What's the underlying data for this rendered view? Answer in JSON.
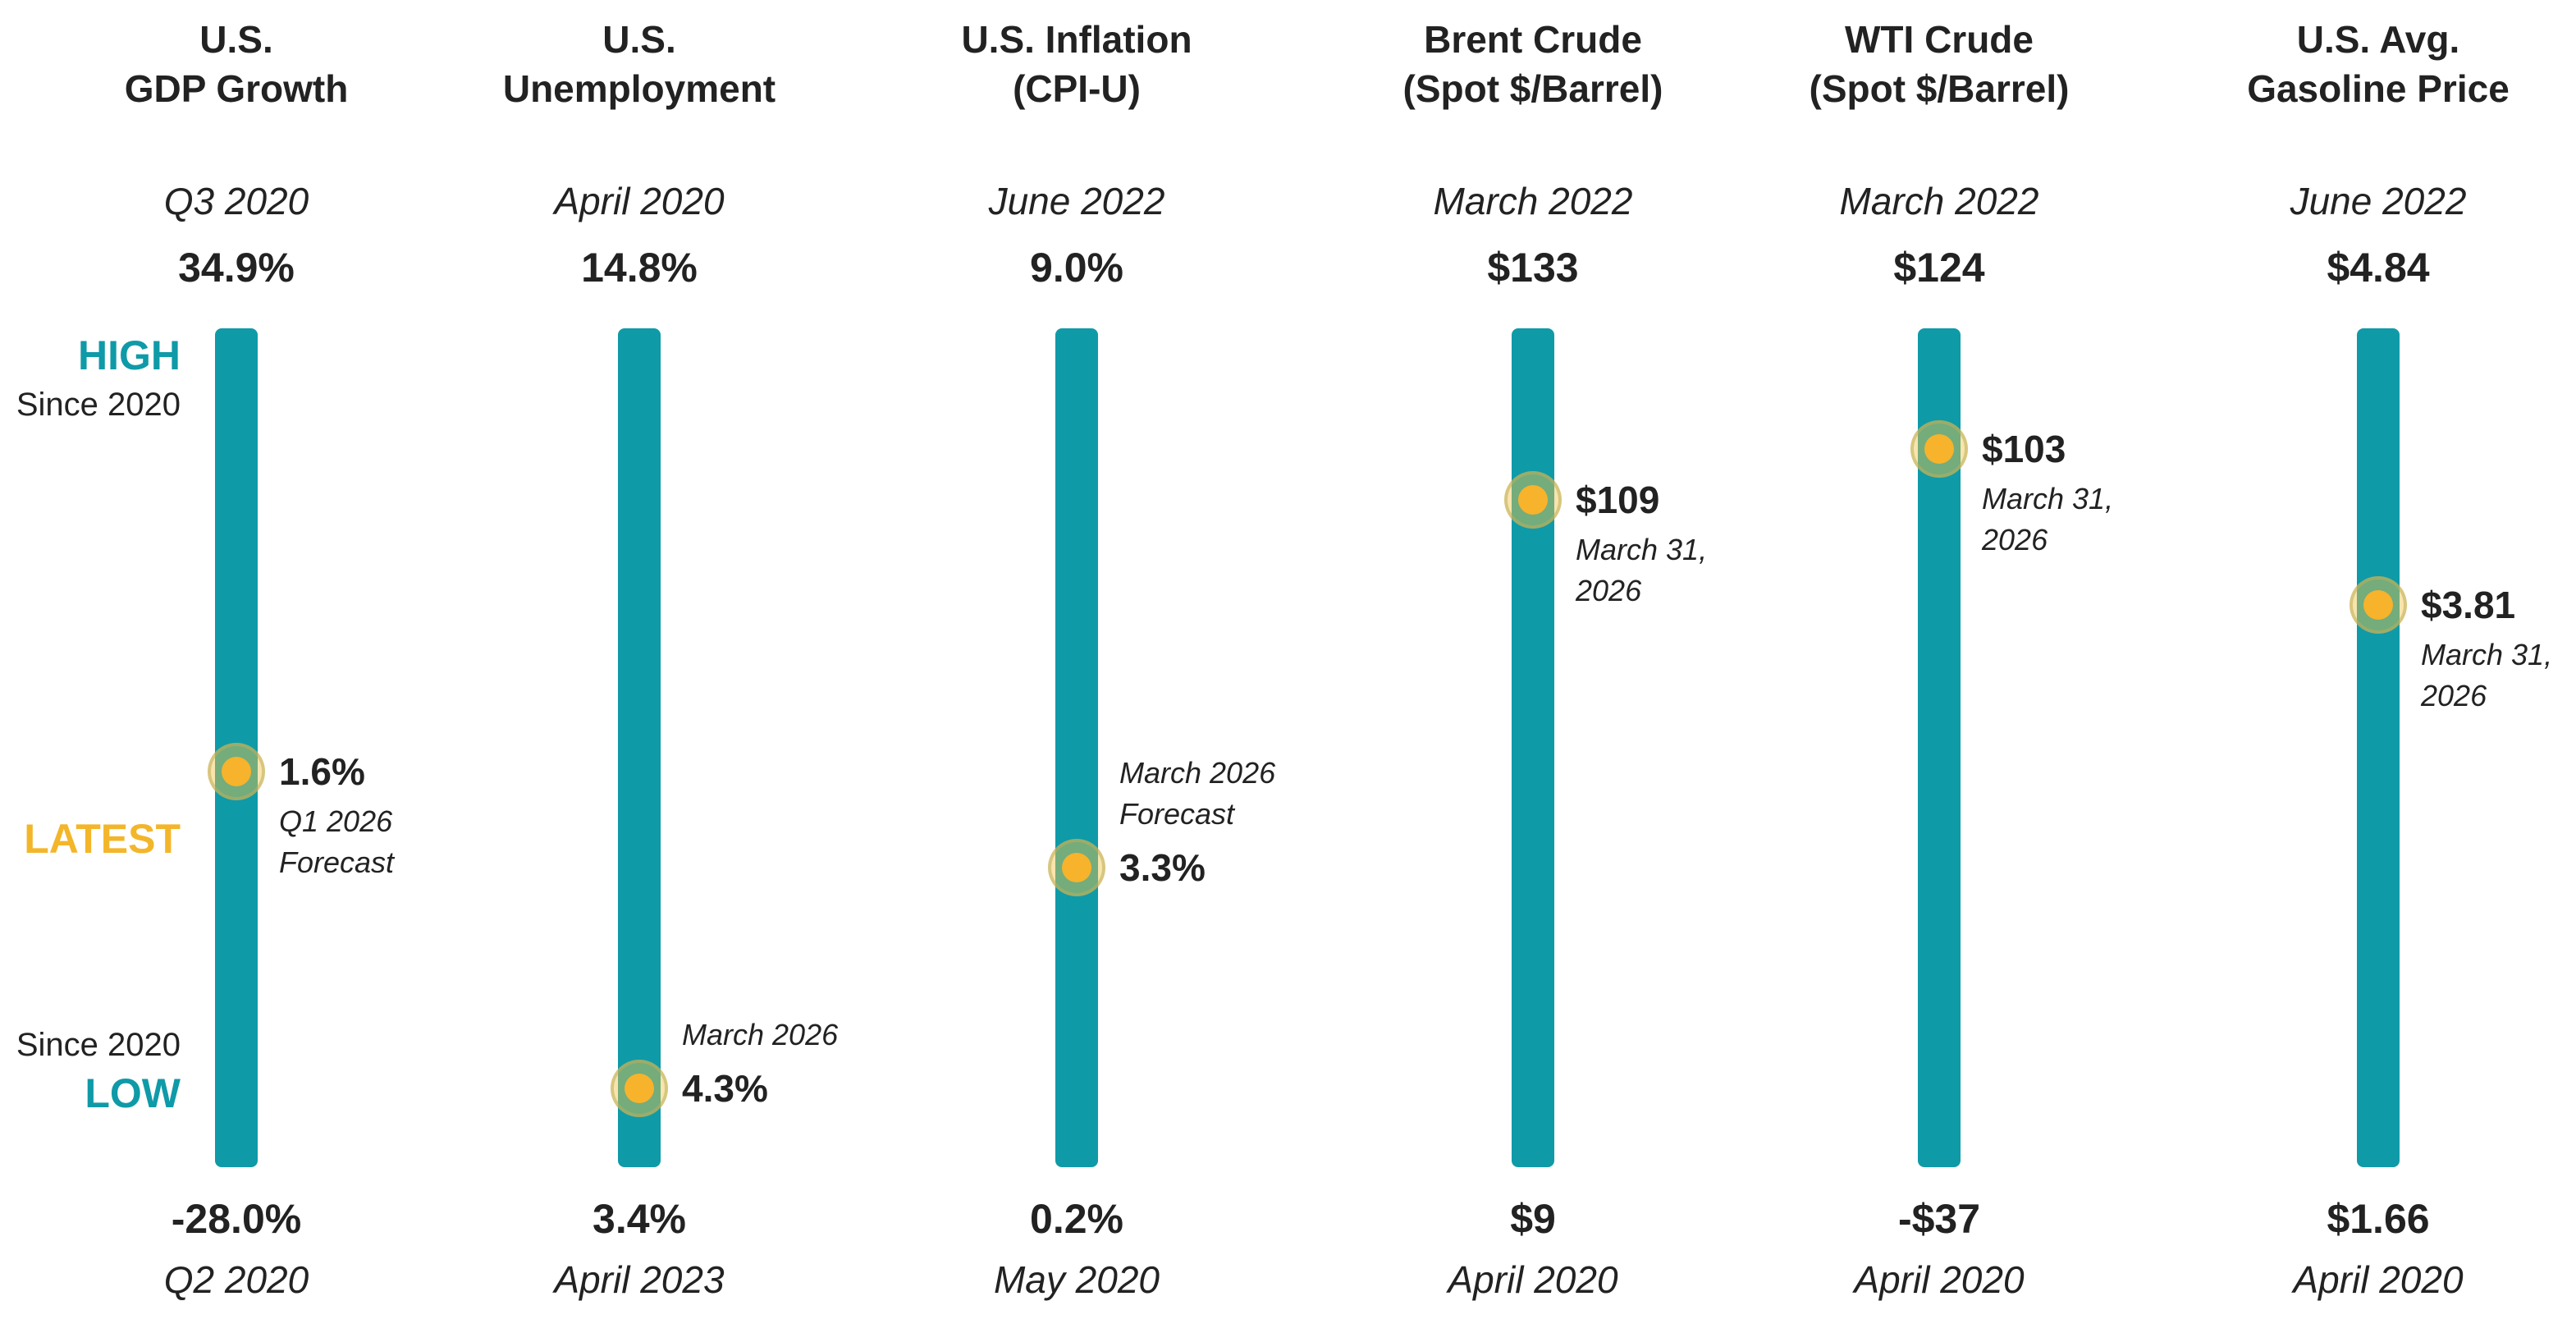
{
  "colors": {
    "bar": "#0f9aa8",
    "marker": "#f7b32b",
    "high_low_label": "#0f9aa8",
    "latest_label": "#f3b62a"
  },
  "legend": {
    "high": "HIGH",
    "high_sub": "Since 2020",
    "latest": "LATEST",
    "low_sub": "Since 2020",
    "low": "LOW"
  },
  "chart_data": {
    "type": "range",
    "indicators": [
      {
        "title_lines": [
          "U.S.",
          "GDP Growth"
        ],
        "high_period": "Q3 2020",
        "high_label": "34.9%",
        "high": 34.9,
        "low_label": "-28.0%",
        "low": -28.0,
        "low_period": "Q2 2020",
        "latest_label": "1.6%",
        "latest": 1.6,
        "latest_note_lines": [
          "Q1 2026",
          "Forecast"
        ],
        "note_position": "below"
      },
      {
        "title_lines": [
          "U.S.",
          "Unemployment"
        ],
        "high_period": "April 2020",
        "high_label": "14.8%",
        "high": 14.8,
        "low_label": "3.4%",
        "low": 3.4,
        "low_period": "April 2023",
        "latest_label": "4.3%",
        "latest": 4.3,
        "latest_note_lines": [
          "March 2026"
        ],
        "note_position": "above"
      },
      {
        "title_lines": [
          "U.S. Inflation",
          "(CPI-U)"
        ],
        "high_period": "June 2022",
        "high_label": "9.0%",
        "high": 9.0,
        "low_label": "0.2%",
        "low": 0.2,
        "low_period": "May 2020",
        "latest_label": "3.3%",
        "latest": 3.3,
        "latest_note_lines": [
          "March 2026",
          "Forecast"
        ],
        "note_position": "above"
      },
      {
        "title_lines": [
          "Brent Crude",
          "(Spot $/Barrel)"
        ],
        "high_period": "March 2022",
        "high_label": "$133",
        "high": 133,
        "low_label": "$9",
        "low": 9,
        "low_period": "April 2020",
        "latest_label": "$109",
        "latest": 109,
        "latest_note_lines": [
          "March 31,",
          "2026"
        ],
        "note_position": "below"
      },
      {
        "title_lines": [
          "WTI Crude",
          "(Spot $/Barrel)"
        ],
        "high_period": "March 2022",
        "high_label": "$124",
        "high": 124,
        "low_label": "-$37",
        "low": -37,
        "low_period": "April 2020",
        "latest_label": "$103",
        "latest": 103,
        "latest_note_lines": [
          "March 31,",
          "2026"
        ],
        "note_position": "below"
      },
      {
        "title_lines": [
          "U.S. Avg.",
          "Gasoline Price"
        ],
        "high_period": "June 2022",
        "high_label": "$4.84",
        "high": 4.84,
        "low_label": "$1.66",
        "low": 1.66,
        "low_period": "April 2020",
        "latest_label": "$3.81",
        "latest": 3.81,
        "latest_note_lines": [
          "March 31,",
          "2026"
        ],
        "note_position": "below"
      }
    ]
  }
}
